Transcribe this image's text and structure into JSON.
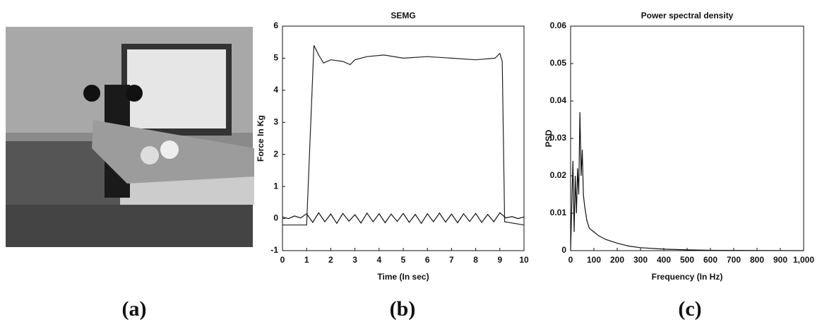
{
  "panel_labels": [
    "(a)",
    "(b)",
    "(c)"
  ],
  "chart_data": [
    {
      "type": "line",
      "title": "SEMG",
      "x_label": "Time (In sec)",
      "y_label": "Force In Kg",
      "xlim": [
        0,
        10
      ],
      "xticks": [
        0,
        1,
        2,
        3,
        4,
        5,
        6,
        7,
        8,
        9,
        10
      ],
      "ylim": [
        -1,
        6
      ],
      "yticks": [
        -1,
        0,
        1,
        2,
        3,
        4,
        5,
        6
      ],
      "series": [
        {
          "color": "#222",
          "x": [
            0,
            1,
            1.3,
            1.5,
            1.7,
            2,
            2.5,
            2.8,
            3,
            3.5,
            4.2,
            5,
            6,
            7,
            8,
            8.8,
            9,
            9.1,
            9.2,
            10
          ],
          "values": [
            -0.2,
            -0.2,
            5.4,
            5.1,
            4.85,
            4.95,
            4.9,
            4.8,
            4.95,
            5.05,
            5.1,
            5.0,
            5.05,
            5.0,
            4.95,
            5.0,
            5.15,
            4.9,
            -0.1,
            -0.2
          ]
        },
        {
          "color": "#111",
          "x": [
            0,
            0.25,
            0.5,
            0.75,
            1,
            1.25,
            1.5,
            1.75,
            2,
            2.25,
            2.5,
            2.75,
            3,
            3.25,
            3.5,
            3.75,
            4,
            4.25,
            4.5,
            4.75,
            5,
            5.25,
            5.5,
            5.75,
            6,
            6.25,
            6.5,
            6.75,
            7,
            7.25,
            7.5,
            7.75,
            8,
            8.25,
            8.5,
            8.75,
            9,
            9.25,
            9.5,
            9.75,
            10
          ],
          "values": [
            0.05,
            0.0,
            0.08,
            0.02,
            0.15,
            -0.12,
            0.18,
            -0.1,
            0.14,
            -0.15,
            0.16,
            -0.08,
            0.12,
            -0.14,
            0.17,
            -0.1,
            0.15,
            -0.13,
            0.14,
            -0.09,
            0.16,
            -0.12,
            0.13,
            -0.15,
            0.15,
            -0.1,
            0.17,
            -0.11,
            0.14,
            -0.13,
            0.15,
            -0.09,
            0.16,
            -0.12,
            0.13,
            -0.1,
            0.18,
            0.02,
            0.06,
            0.0,
            0.05
          ]
        }
      ]
    },
    {
      "type": "line",
      "title": "Power spectral density",
      "x_label": "Frequency (In Hz)",
      "y_label": "PSD",
      "xlim": [
        0,
        1000
      ],
      "xticks": [
        0,
        100,
        200,
        300,
        400,
        500,
        600,
        700,
        800,
        900,
        {
          "value": 1000,
          "label": "1,000"
        }
      ],
      "ylim": [
        0,
        0.06
      ],
      "yticks": [
        0,
        0.01,
        0.02,
        0.03,
        0.04,
        0.05,
        0.06
      ],
      "series": [
        {
          "color": "#111",
          "x": [
            0,
            10,
            15,
            20,
            25,
            30,
            35,
            40,
            45,
            50,
            55,
            60,
            70,
            80,
            100,
            120,
            150,
            200,
            250,
            300,
            400,
            500,
            600,
            1000
          ],
          "values": [
            0,
            0.024,
            0.005,
            0.02,
            0.01,
            0.022,
            0.015,
            0.037,
            0.02,
            0.027,
            0.015,
            0.012,
            0.008,
            0.006,
            0.005,
            0.004,
            0.003,
            0.002,
            0.0012,
            0.0008,
            0.0004,
            0.0002,
            0.0001,
            0
          ]
        }
      ]
    }
  ]
}
